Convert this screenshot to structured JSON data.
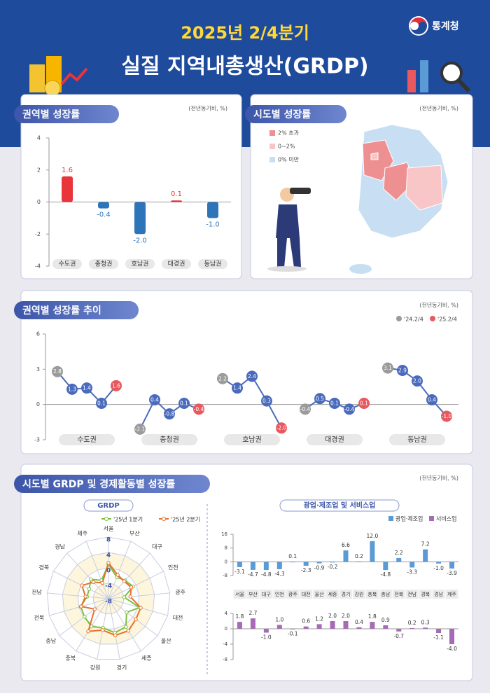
{
  "header": {
    "period": "2025년 2/4분기",
    "title": "실질 지역내총생산(GRDP)",
    "agency": "통계청"
  },
  "chart_data": [
    {
      "type": "bar",
      "title": "권역별 성장률",
      "note": "(전년동기비, %)",
      "categories": [
        "수도권",
        "충청권",
        "호남권",
        "대경권",
        "동남권"
      ],
      "values": [
        1.6,
        -0.4,
        -2.0,
        0.1,
        -1.0
      ],
      "value_labels": [
        "1.6",
        "-0.4",
        "-2.0",
        "0.1",
        "-1.0"
      ],
      "colors": [
        "#e8343a",
        "#2e74b8",
        "#2e74b8",
        "#e8343a",
        "#2e74b8"
      ],
      "ylim": [
        -4,
        4
      ],
      "yticks": [
        -4,
        -2,
        0,
        2,
        4
      ]
    },
    {
      "type": "map",
      "title": "시도별 성장률",
      "note": "(전년동기비, %)",
      "legend": [
        {
          "name": "2% 초과",
          "color": "#ee8f92"
        },
        {
          "name": "0~2%",
          "color": "#f8c6c6"
        },
        {
          "name": "0% 미만",
          "color": "#c8def2"
        }
      ]
    },
    {
      "type": "line",
      "title": "권역별 성장률 추이",
      "note": "(전년동기비, %)",
      "legend": [
        {
          "name": "'24.2/4",
          "color": "#9b9b9b"
        },
        {
          "name": "'25.2/4",
          "color": "#e8585e"
        }
      ],
      "point_color": "#4a6bbd",
      "series": [
        {
          "name": "수도권",
          "values": [
            2.8,
            1.3,
            1.4,
            0.1,
            1.6
          ]
        },
        {
          "name": "충청권",
          "values": [
            -2.1,
            0.4,
            -0.8,
            0.1,
            -0.4
          ]
        },
        {
          "name": "호남권",
          "values": [
            2.2,
            1.4,
            2.4,
            0.3,
            -2.0
          ],
          "value_labels": [
            "2.2",
            "1.4",
            "2.4",
            "0.3",
            "-2.0"
          ]
        },
        {
          "name": "대경권",
          "values": [
            -0.4,
            0.5,
            0.1,
            -0.4,
            0.1
          ]
        },
        {
          "name": "동남권",
          "values": [
            3.1,
            2.9,
            2.0,
            0.4,
            -1.0
          ],
          "value_labels": [
            "3.1",
            "2.9",
            "2.0",
            "0.4",
            "-1.0"
          ]
        }
      ],
      "ylim": [
        -3,
        6
      ],
      "yticks": [
        -3,
        0,
        3,
        6
      ]
    },
    {
      "type": "radar",
      "section_title": "시도별 GRDP 및 경제활동별 성장률",
      "note": "(전년동기비, %)",
      "title": "GRDP",
      "categories": [
        "서울",
        "부산",
        "대구",
        "인천",
        "광주",
        "대전",
        "울산",
        "세종",
        "경기",
        "강원",
        "충북",
        "충남",
        "전북",
        "전남",
        "경북",
        "경남",
        "제주"
      ],
      "series": [
        {
          "name": "'25년 1분기",
          "color": "#7ac143",
          "values": [
            0.9,
            -2.0,
            -1.6,
            -0.9,
            -3.9,
            0.4,
            -2.1,
            0.6,
            1.0,
            -0.3,
            0.5,
            -0.2,
            -0.5,
            -2.4,
            -2.4,
            -1.2,
            -2.9
          ]
        },
        {
          "name": "'25년 2분기",
          "color": "#e8702a",
          "values": [
            1.3,
            -1.4,
            -1.9,
            -1.4,
            -2.3,
            0.7,
            0.9,
            1.8,
            1.7,
            0.3,
            2.0,
            -3.5,
            -0.6,
            -2.0,
            -0.3,
            -2.2,
            -3.6
          ]
        }
      ],
      "rlim": [
        -8,
        8
      ],
      "rticks": [
        -8,
        -4,
        0,
        4,
        8
      ]
    },
    {
      "type": "bar",
      "title": "광업·제조업 및 서비스업",
      "categories": [
        "서울",
        "부산",
        "대구",
        "인천",
        "광주",
        "대전",
        "울산",
        "세종",
        "경기",
        "강원",
        "충북",
        "충남",
        "전북",
        "전남",
        "경북",
        "경남",
        "제주"
      ],
      "series": [
        {
          "name": "광업·제조업",
          "color": "#5b9bd5",
          "values": [
            -3.1,
            -4.7,
            -4.8,
            -4.3,
            0.1,
            -2.3,
            -0.9,
            -0.2,
            6.6,
            0.2,
            12.0,
            -4.8,
            2.2,
            -3.3,
            7.2,
            -1.0,
            -3.9
          ],
          "value_labels": [
            "-3.1",
            "-4.7",
            "-4.8",
            "-4.3",
            "0.1",
            "-2.3",
            "-0.9",
            "-0.2",
            "6.6",
            "0.2",
            "12.0",
            "-4.8",
            "2.2",
            "-3.3",
            "7.2",
            "-1.0",
            "-3.9"
          ],
          "ylim": [
            -8,
            16
          ],
          "yticks": [
            -8,
            0,
            8,
            16
          ]
        },
        {
          "name": "서비스업",
          "color": "#a66bb5",
          "values": [
            1.8,
            2.7,
            -1.0,
            1.0,
            -0.1,
            0.6,
            1.2,
            2.0,
            2.0,
            0.4,
            1.8,
            0.9,
            -0.7,
            0.2,
            0.3,
            -1.1,
            -4.0
          ],
          "value_labels": [
            "1.8",
            "2.7",
            "-1.0",
            "1.0",
            "-0.1",
            "0.6",
            "1.2",
            "2.0",
            "2.0",
            "0.4",
            "1.8",
            "0.9",
            "-0.7",
            "0.2",
            "0.3",
            "-1.1",
            "-4.0"
          ],
          "ylim": [
            -8,
            4
          ],
          "yticks": [
            -8,
            -4,
            0,
            4
          ]
        }
      ]
    }
  ]
}
